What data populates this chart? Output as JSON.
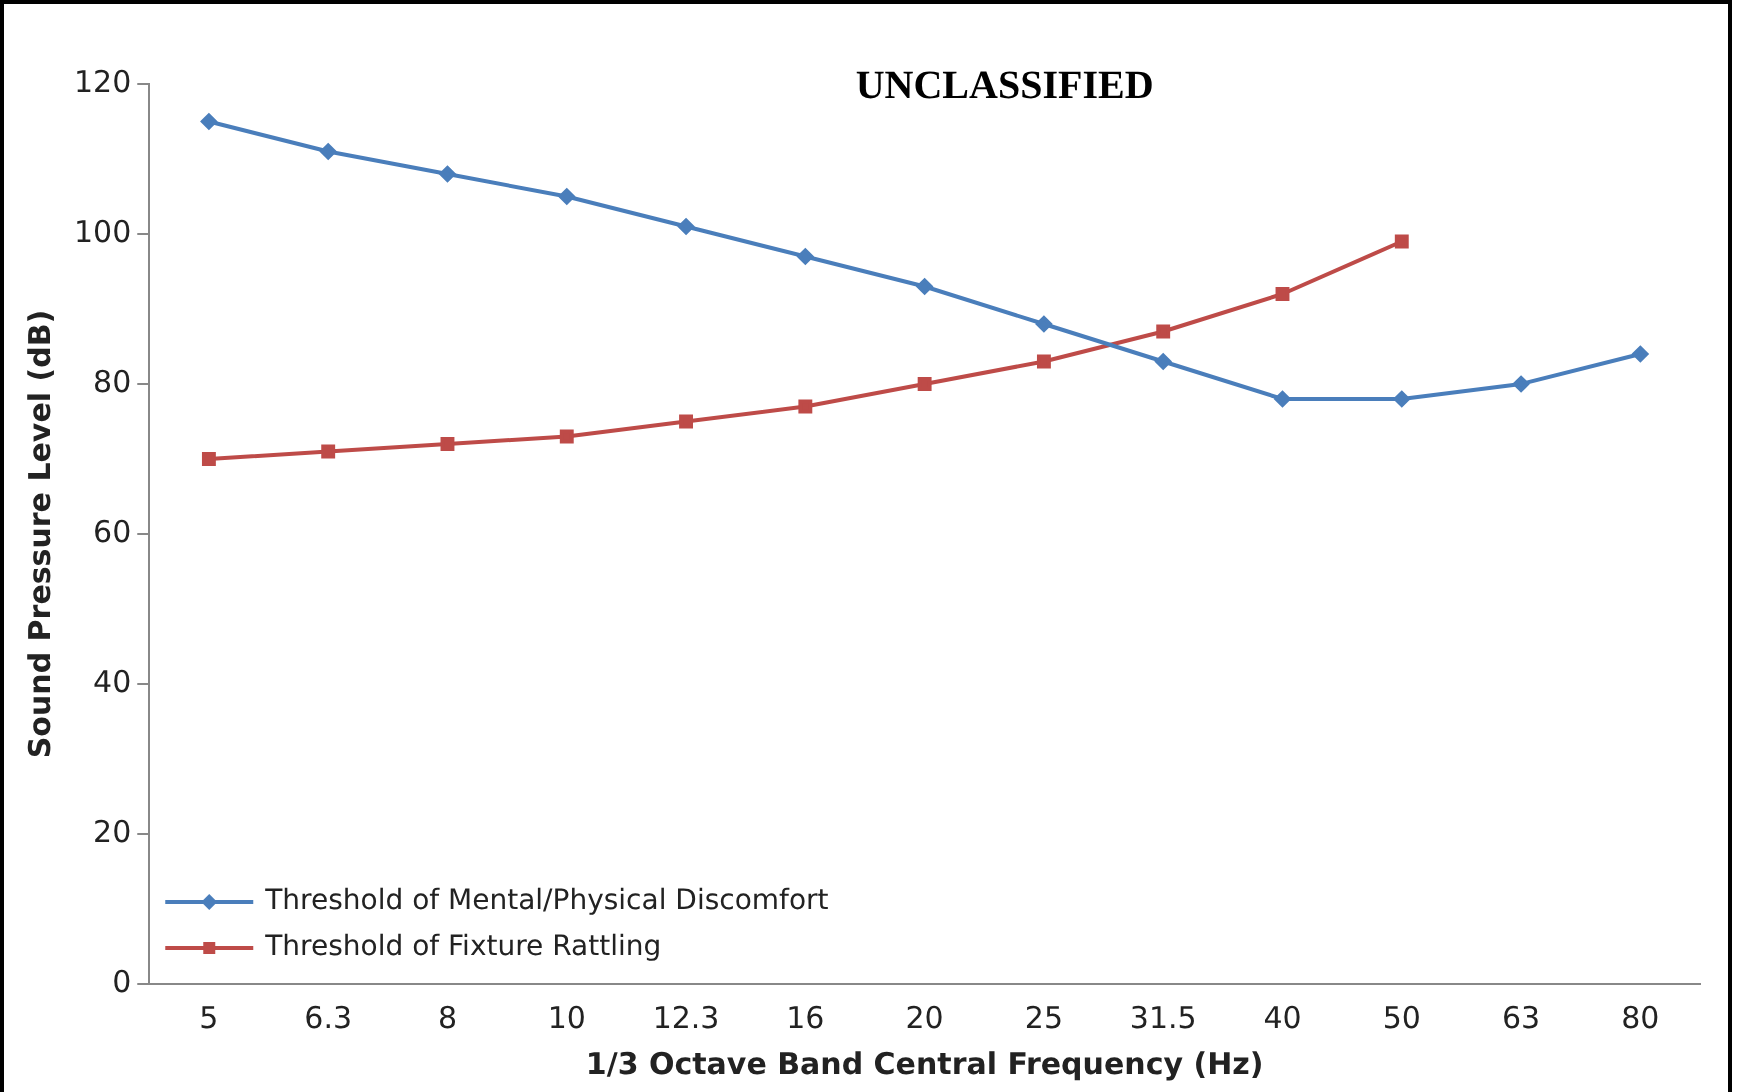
{
  "chart_data": {
    "type": "line",
    "title": "UNCLASSIFIED",
    "xlabel": "1/3 Octave Band Central Frequency (Hz)",
    "ylabel": "Sound Pressure Level (dB)",
    "categories": [
      "5",
      "6.3",
      "8",
      "10",
      "12.3",
      "16",
      "20",
      "25",
      "31.5",
      "40",
      "50",
      "63",
      "80"
    ],
    "series": [
      {
        "name": "Threshold of Mental/Physical Discomfort",
        "color": "#4a7ebb",
        "marker": "diamond",
        "values": [
          115,
          111,
          108,
          105,
          101,
          97,
          93,
          88,
          83,
          78,
          78,
          80,
          84
        ]
      },
      {
        "name": "Threshold of Fixture Rattling",
        "color": "#be4b48",
        "marker": "square",
        "values": [
          70,
          71,
          72,
          73,
          75,
          77,
          80,
          83,
          87,
          92,
          99,
          null,
          null
        ]
      }
    ],
    "ylim": [
      0,
      120
    ],
    "yticks": [
      0,
      20,
      40,
      60,
      80,
      100,
      120
    ],
    "grid": false,
    "legend": "bottom left",
    "line_style": "solid"
  }
}
